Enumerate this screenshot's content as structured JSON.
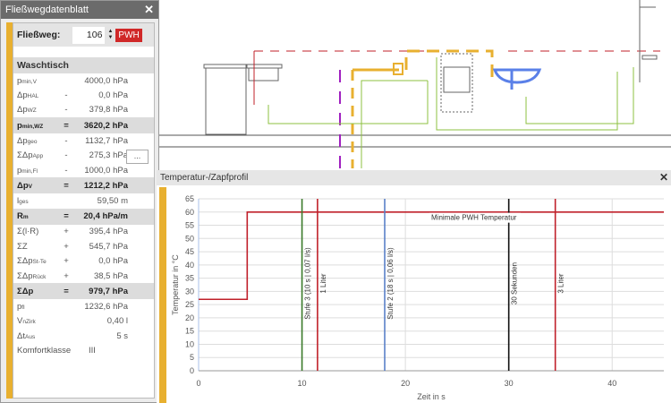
{
  "panel": {
    "title": "Fließwegdatenblatt",
    "flow_label": "Fließweg:",
    "flow_value": "106",
    "flow_type": "PWH",
    "section": "Waschtisch",
    "more_button": "...",
    "rows": [
      {
        "l": "p",
        "s": "min,V",
        "o": "",
        "v": "4000,0 hPa",
        "hd": false
      },
      {
        "l": "Δp",
        "s": "HAL",
        "o": "-",
        "v": "0,0 hPa",
        "hd": false
      },
      {
        "l": "Δp",
        "s": "WZ",
        "o": "-",
        "v": "379,8 hPa",
        "hd": false
      },
      {
        "l": "p",
        "s": "min,WZ",
        "o": "=",
        "v": "3620,2 hPa",
        "hd": true
      },
      {
        "l": "Δp",
        "s": "geo",
        "o": "-",
        "v": "1132,7 hPa",
        "hd": false
      },
      {
        "l": "ΣΔp",
        "s": "App",
        "o": "-",
        "v": "275,3 hPa",
        "hd": false
      },
      {
        "l": "p",
        "s": "min,Fl",
        "o": "-",
        "v": "1000,0 hPa",
        "hd": false
      },
      {
        "l": "Δp",
        "s": "V",
        "o": "=",
        "v": "1212,2 hPa",
        "hd": true
      },
      {
        "l": "l",
        "s": "ges",
        "o": "",
        "v": "59,50 m",
        "hd": false
      },
      {
        "l": "R",
        "s": "m",
        "o": "=",
        "v": "20,4 hPa/m",
        "hd": true
      },
      {
        "l": "Σ(l·R)",
        "s": "",
        "o": "+",
        "v": "395,4 hPa",
        "hd": false
      },
      {
        "l": "ΣZ",
        "s": "",
        "o": "+",
        "v": "545,7 hPa",
        "hd": false
      },
      {
        "l": "ΣΔp",
        "s": "St-Te",
        "o": "+",
        "v": "0,0 hPa",
        "hd": false
      },
      {
        "l": "ΣΔp",
        "s": "Rück",
        "o": "+",
        "v": "38,5 hPa",
        "hd": false
      },
      {
        "l": "ΣΔp",
        "s": "",
        "o": "=",
        "v": "979,7 hPa",
        "hd": true
      },
      {
        "l": "p",
        "s": "fl",
        "o": "",
        "v": "1232,6 hPa",
        "hd": false
      },
      {
        "l": "V",
        "s": "nZirk",
        "o": "",
        "v": "0,40 l",
        "hd": false
      },
      {
        "l": "Δt",
        "s": "Aus",
        "o": "",
        "v": "5 s",
        "hd": false
      },
      {
        "l": "Komfortklasse",
        "s": "",
        "o": "",
        "v": "III",
        "hd": false
      }
    ]
  },
  "chart_window": {
    "title": "Temperatur-/Zapfprofil"
  },
  "chart_data": {
    "type": "line",
    "xlabel": "Zeit in s",
    "ylabel": "Temperatur in °C",
    "xlim": [
      0,
      45
    ],
    "ylim": [
      0,
      65
    ],
    "xticks": [
      0,
      10,
      20,
      30,
      40
    ],
    "yticks": [
      0,
      5,
      10,
      15,
      20,
      25,
      30,
      35,
      40,
      45,
      50,
      55,
      60,
      65
    ],
    "grid": true,
    "series": [
      {
        "x": [
          0,
          4.7,
          4.7,
          45
        ],
        "y": [
          27,
          27,
          60,
          60
        ],
        "color": "#c0202a"
      }
    ],
    "annotations": [
      {
        "x": 10,
        "label": "Stufe 3 (10 s | 0,07 l/s)",
        "color": "#3a7a2a"
      },
      {
        "x": 11.5,
        "label": "1 Liter",
        "color": "#c0202a"
      },
      {
        "x": 18,
        "label": "Stufe 2 (18 s | 0,06 l/s)",
        "color": "#5a80c8"
      },
      {
        "x": 30,
        "label": "30 Sekunden",
        "color": "#111111"
      },
      {
        "x": 34.5,
        "label": "3 Liter",
        "color": "#c0202a"
      }
    ],
    "hline_label": {
      "x": 22.5,
      "y": 57,
      "label": "Minimale PWH Temperatur"
    }
  }
}
